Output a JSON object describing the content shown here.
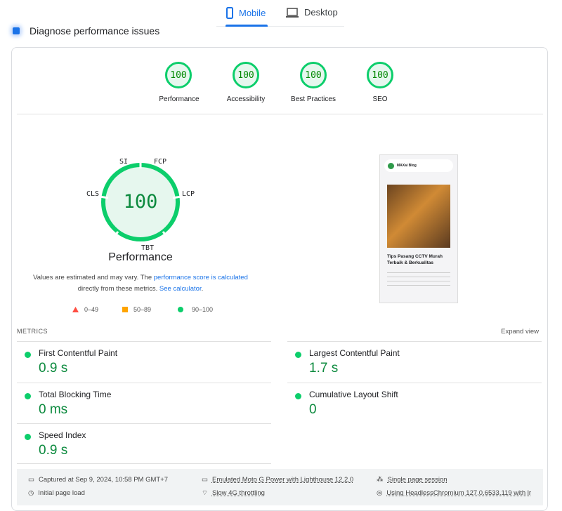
{
  "tabs": [
    {
      "label": "Mobile",
      "icon": "mobile-icon",
      "active": true
    },
    {
      "label": "Desktop",
      "icon": "desktop-icon",
      "active": false
    }
  ],
  "section_title": "Diagnose performance issues",
  "categories": [
    {
      "label": "Performance",
      "score": "100"
    },
    {
      "label": "Accessibility",
      "score": "100"
    },
    {
      "label": "Best Practices",
      "score": "100"
    },
    {
      "label": "SEO",
      "score": "100"
    }
  ],
  "gauge": {
    "score": "100",
    "title": "Performance",
    "labels": {
      "si": "SI",
      "fcp": "FCP",
      "lcp": "LCP",
      "tbt": "TBT",
      "cls": "CLS"
    }
  },
  "note": {
    "t1": "Values are estimated and may vary. The ",
    "link1": "performance score is calculated",
    "t2": " directly from these metrics. ",
    "link2": "See calculator",
    "t3": "."
  },
  "legend": [
    {
      "label": "0–49",
      "color": "#ff4e42"
    },
    {
      "label": "50–89",
      "color": "#ffa400"
    },
    {
      "label": "90–100",
      "color": "#0cce6b"
    }
  ],
  "metrics_title": "METRICS",
  "expand": "Expand view",
  "metrics": [
    {
      "name": "First Contentful Paint",
      "value": "0.9 s"
    },
    {
      "name": "Largest Contentful Paint",
      "value": "1.7 s"
    },
    {
      "name": "Total Blocking Time",
      "value": "0 ms"
    },
    {
      "name": "Cumulative Layout Shift",
      "value": "0"
    },
    {
      "name": "Speed Index",
      "value": "0.9 s"
    }
  ],
  "screenshot": {
    "logo": "MAXai Blog",
    "title": "Tips Pasang CCTV Murah Terbaik & Berkualitas"
  },
  "footer": {
    "captured": "Captured at Sep 9, 2024, 10:58 PM GMT+7",
    "load": "Initial page load",
    "device": "Emulated Moto G Power with Lighthouse 12.2.0",
    "throttle": "Slow 4G throttling",
    "session": "Single page session",
    "browser": "Using HeadlessChromium 127.0.6533.119 with lr"
  },
  "colors": {
    "pass": "#0cce6b",
    "accent": "#1a73e8"
  }
}
